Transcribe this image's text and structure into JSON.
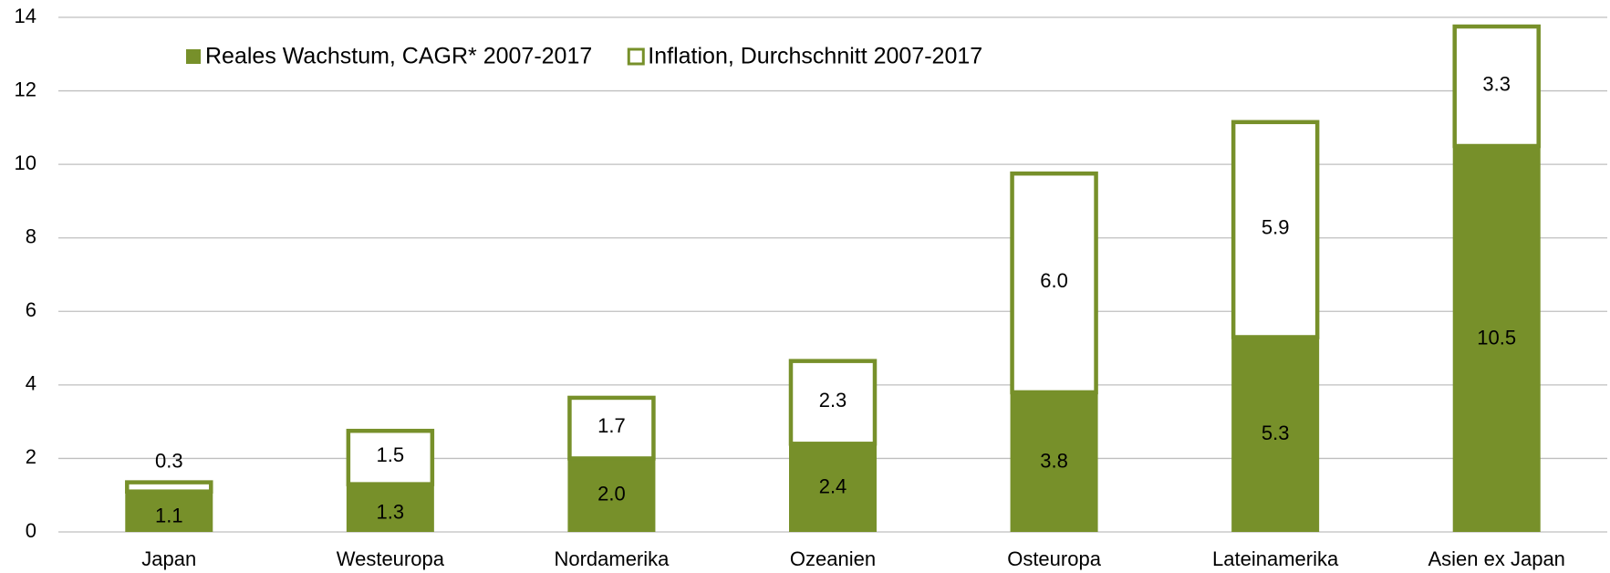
{
  "chart_data": {
    "type": "stacked_bar",
    "categories": [
      "Japan",
      "Westeuropa",
      "Nordamerika",
      "Ozeanien",
      "Osteuropa",
      "Lateinamerika",
      "Asien ex Japan"
    ],
    "series": [
      {
        "name": "Reales Wachstum, CAGR* 2007-2017",
        "color": "#77902a",
        "fill": "#77902a",
        "values": [
          1.1,
          1.3,
          2.0,
          2.4,
          3.8,
          5.3,
          10.5
        ],
        "value_labels": [
          "1.1",
          "1.3",
          "2.0",
          "2.4",
          "3.8",
          "5.3",
          "10.5"
        ]
      },
      {
        "name": "Inflation, Durchschnitt 2007-2017",
        "color": "#77902a",
        "fill": "#ffffff",
        "values": [
          0.3,
          1.5,
          1.7,
          2.3,
          6.0,
          5.9,
          3.3
        ],
        "value_labels": [
          "0.3",
          "1.5",
          "1.7",
          "2.3",
          "6.0",
          "5.9",
          "3.3"
        ]
      }
    ],
    "ylim": [
      0,
      14
    ],
    "yticks": [
      0,
      2,
      4,
      6,
      8,
      10,
      12,
      14
    ],
    "grid": true,
    "legend": "top-left"
  }
}
